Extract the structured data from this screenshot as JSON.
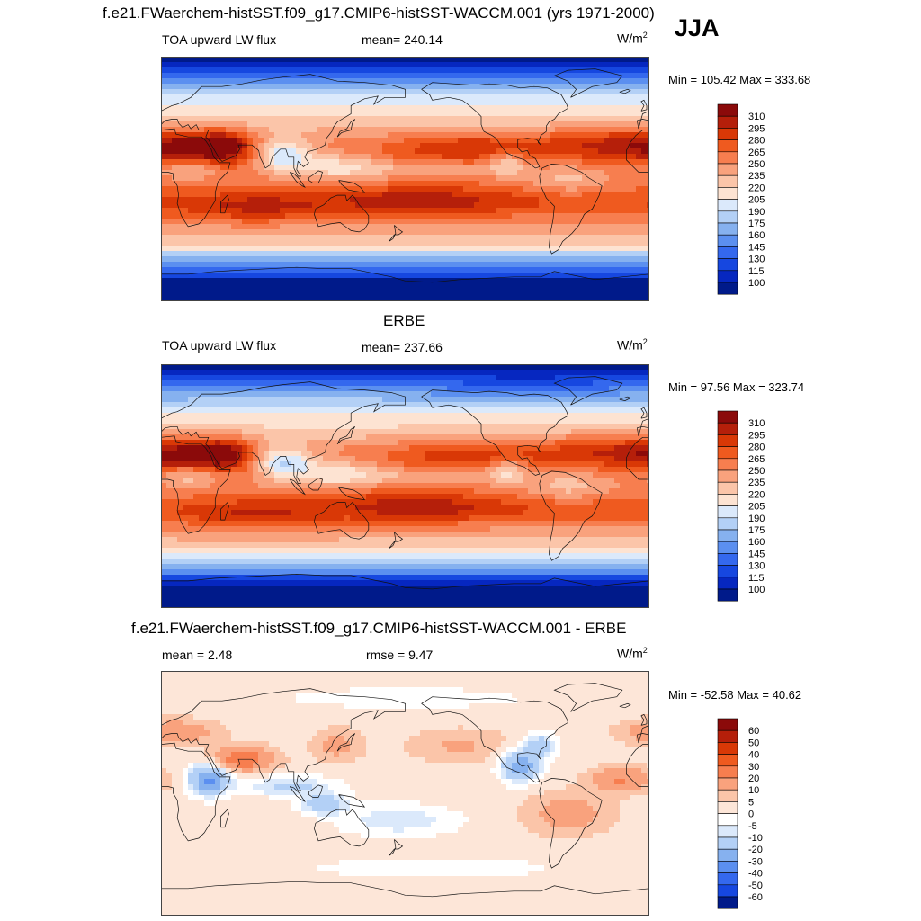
{
  "header": {
    "title": "f.e21.FWaerchem-histSST.f09_g17.CMIP6-histSST-WACCM.001 (yrs 1971-2000)",
    "season": "JJA"
  },
  "panels": [
    {
      "id": "model",
      "left_label": "TOA upward LW flux",
      "center_label": "mean= 240.14",
      "unit_base": "W/m",
      "unit_sup": "2",
      "minmax": "Min = 105.42 Max = 333.68"
    },
    {
      "id": "obs",
      "top_title": "ERBE",
      "left_label": "TOA upward LW flux",
      "center_label": "mean= 237.66",
      "unit_base": "W/m",
      "unit_sup": "2",
      "minmax": "Min =  97.56 Max = 323.74"
    },
    {
      "id": "diff",
      "top_title": "f.e21.FWaerchem-histSST.f09_g17.CMIP6-histSST-WACCM.001 - ERBE",
      "left_label": "mean =   2.48",
      "center_label": "rmse =   9.47",
      "unit_base": "W/m",
      "unit_sup": "2",
      "minmax": "Min = -52.58 Max =  40.62"
    }
  ],
  "chart_data": [
    {
      "type": "heatmap",
      "title": "TOA upward LW flux",
      "mean": 240.14,
      "min": 105.42,
      "max": 333.68,
      "units": "W/m2",
      "colorbar_labels": [
        310,
        295,
        280,
        265,
        250,
        235,
        220,
        205,
        190,
        175,
        160,
        145,
        130,
        115,
        100
      ],
      "colorbar_colors": [
        "#8b0a0a",
        "#b51f0a",
        "#d93806",
        "#ef5a1f",
        "#f77e4f",
        "#f9a27d",
        "#fbc5a9",
        "#fde3d2",
        "#dbe9fb",
        "#b3d0f6",
        "#86b1ef",
        "#5b8ff0",
        "#3468ee",
        "#1647e0",
        "#0627c0",
        "#001a8a"
      ]
    },
    {
      "type": "heatmap",
      "title": "TOA upward LW flux",
      "mean": 237.66,
      "min": 97.56,
      "max": 323.74,
      "units": "W/m2",
      "colorbar_labels": [
        310,
        295,
        280,
        265,
        250,
        235,
        220,
        205,
        190,
        175,
        160,
        145,
        130,
        115,
        100
      ],
      "colorbar_colors": [
        "#8b0a0a",
        "#b51f0a",
        "#d93806",
        "#ef5a1f",
        "#f77e4f",
        "#f9a27d",
        "#fbc5a9",
        "#fde3d2",
        "#dbe9fb",
        "#b3d0f6",
        "#86b1ef",
        "#5b8ff0",
        "#3468ee",
        "#1647e0",
        "#0627c0",
        "#001a8a"
      ]
    },
    {
      "type": "heatmap",
      "mean": 2.48,
      "rmse": 9.47,
      "min": -52.58,
      "max": 40.62,
      "units": "W/m2",
      "colorbar_labels": [
        60,
        50,
        40,
        30,
        20,
        10,
        5,
        0,
        -5,
        -10,
        -20,
        -30,
        -40,
        -50,
        -60
      ],
      "colorbar_colors": [
        "#8b0a0a",
        "#b51f0a",
        "#d93806",
        "#ef5a1f",
        "#f77e4f",
        "#f9a27d",
        "#fbc5a9",
        "#fde6d8",
        "#ffffff",
        "#dbe9fb",
        "#b3d0f6",
        "#86b1ef",
        "#5b8ff0",
        "#3468ee",
        "#1647e0",
        "#001a8a"
      ]
    }
  ]
}
